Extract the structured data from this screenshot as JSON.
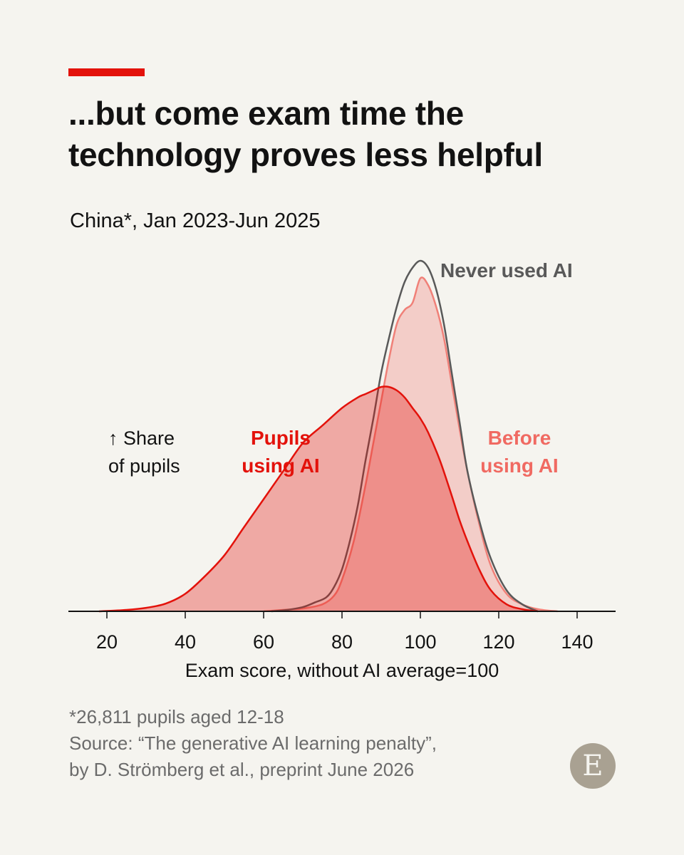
{
  "header": {
    "title_line1": "...but come exam time the",
    "title_line2": "technology proves less helpful",
    "subtitle": "China*, Jan 2023-Jun 2025"
  },
  "chart_data": {
    "type": "area",
    "xlabel": "Exam score, without AI average=100",
    "ylabel_line1": "↑ Share",
    "ylabel_line2": "of pupils",
    "xlim": [
      10,
      150
    ],
    "ylim": [
      0,
      1
    ],
    "xticks": [
      20,
      40,
      60,
      80,
      100,
      120,
      140
    ],
    "colors": {
      "pupils_using_ai": "#e3120b",
      "before_using_ai": "#f08078",
      "never_used_ai": "#595959"
    },
    "series": [
      {
        "key": "before_using_ai",
        "label_line1": "Before",
        "label_line2": "using AI",
        "x": [
          60,
          65,
          70,
          75,
          78,
          80,
          83,
          86,
          88,
          90,
          92,
          94,
          96,
          98,
          100,
          102,
          104,
          106,
          108,
          110,
          112,
          115,
          118,
          122,
          126,
          130,
          135
        ],
        "y": [
          0,
          0.004,
          0.008,
          0.02,
          0.045,
          0.09,
          0.2,
          0.36,
          0.48,
          0.6,
          0.72,
          0.82,
          0.86,
          0.88,
          0.95,
          0.93,
          0.87,
          0.78,
          0.65,
          0.52,
          0.4,
          0.25,
          0.13,
          0.05,
          0.02,
          0.006,
          0
        ]
      },
      {
        "key": "never_used_ai",
        "label_line1": "Never used AI",
        "label_line2": "",
        "x": [
          62,
          66,
          70,
          73,
          76,
          78,
          80,
          82,
          84,
          86,
          88,
          90,
          92,
          94,
          96,
          98,
          100,
          102,
          104,
          106,
          108,
          110,
          112,
          115,
          118,
          122,
          126,
          130
        ],
        "y": [
          0,
          0.004,
          0.012,
          0.025,
          0.04,
          0.07,
          0.12,
          0.2,
          0.3,
          0.43,
          0.55,
          0.68,
          0.78,
          0.87,
          0.94,
          0.98,
          1.0,
          0.98,
          0.92,
          0.82,
          0.68,
          0.54,
          0.4,
          0.26,
          0.15,
          0.06,
          0.02,
          0
        ]
      },
      {
        "key": "pupils_using_ai",
        "label_line1": "Pupils",
        "label_line2": "using AI",
        "x": [
          18,
          25,
          30,
          35,
          40,
          45,
          50,
          55,
          60,
          65,
          70,
          75,
          80,
          84,
          86,
          88,
          90,
          92,
          94,
          96,
          98,
          100,
          102,
          105,
          108,
          110,
          112,
          115,
          118,
          122,
          126,
          130
        ],
        "y": [
          0,
          0.004,
          0.01,
          0.022,
          0.05,
          0.1,
          0.16,
          0.24,
          0.32,
          0.4,
          0.48,
          0.53,
          0.58,
          0.61,
          0.62,
          0.63,
          0.64,
          0.64,
          0.63,
          0.61,
          0.58,
          0.55,
          0.51,
          0.43,
          0.33,
          0.26,
          0.2,
          0.12,
          0.06,
          0.02,
          0.006,
          0
        ]
      }
    ]
  },
  "footnote": {
    "line1": "*26,811 pupils aged 12-18",
    "line2": "Source: “The generative AI learning penalty”,",
    "line3": "by D. Strömberg et al., preprint June 2026"
  },
  "logo": {
    "letter": "E"
  }
}
